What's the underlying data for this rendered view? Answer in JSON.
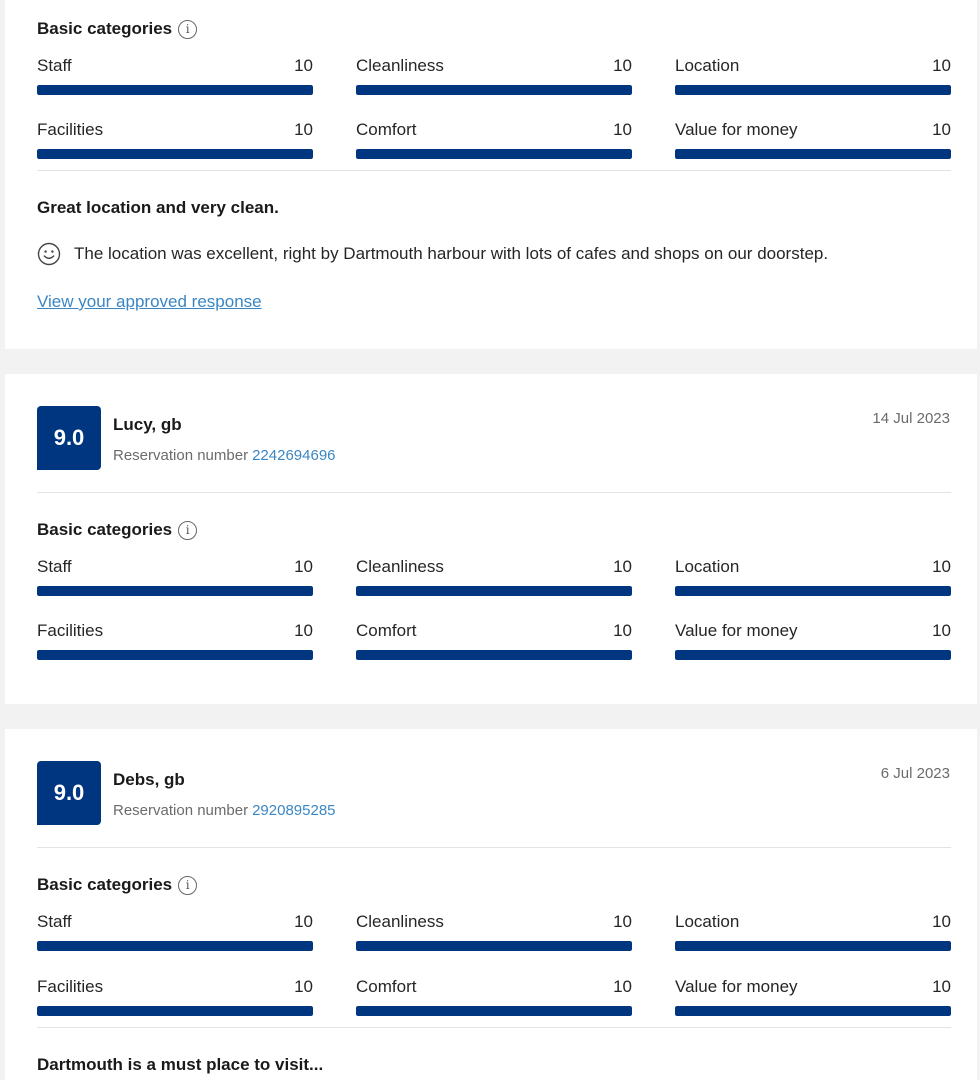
{
  "common": {
    "basic_categories_label": "Basic categories",
    "info_glyph": "i",
    "reservation_label": "Reservation number"
  },
  "colors": {
    "bar_fill": "#003580",
    "score_bg": "#003580",
    "link": "#3a86c4"
  },
  "icons": {
    "info": "info-icon",
    "smile": "smile-icon"
  },
  "reviews": [
    {
      "categories": [
        {
          "label": "Staff",
          "score": "10",
          "fraction": 1.0
        },
        {
          "label": "Cleanliness",
          "score": "10",
          "fraction": 1.0
        },
        {
          "label": "Location",
          "score": "10",
          "fraction": 1.0
        },
        {
          "label": "Facilities",
          "score": "10",
          "fraction": 1.0
        },
        {
          "label": "Comfort",
          "score": "10",
          "fraction": 1.0
        },
        {
          "label": "Value for money",
          "score": "10",
          "fraction": 1.0
        }
      ],
      "title": "Great location and very clean.",
      "positive_text": "The location was excellent, right by Dartmouth harbour with lots of cafes and shops on our doorstep.",
      "response_link": "View your approved response"
    },
    {
      "score": "9.0",
      "guest": "Lucy, gb",
      "reservation_number": "2242694696",
      "date": "14 Jul 2023",
      "categories": [
        {
          "label": "Staff",
          "score": "10",
          "fraction": 1.0
        },
        {
          "label": "Cleanliness",
          "score": "10",
          "fraction": 1.0
        },
        {
          "label": "Location",
          "score": "10",
          "fraction": 1.0
        },
        {
          "label": "Facilities",
          "score": "10",
          "fraction": 1.0
        },
        {
          "label": "Comfort",
          "score": "10",
          "fraction": 1.0
        },
        {
          "label": "Value for money",
          "score": "10",
          "fraction": 1.0
        }
      ]
    },
    {
      "score": "9.0",
      "guest": "Debs, gb",
      "reservation_number": "2920895285",
      "date": "6 Jul 2023",
      "categories": [
        {
          "label": "Staff",
          "score": "10",
          "fraction": 1.0
        },
        {
          "label": "Cleanliness",
          "score": "10",
          "fraction": 1.0
        },
        {
          "label": "Location",
          "score": "10",
          "fraction": 1.0
        },
        {
          "label": "Facilities",
          "score": "10",
          "fraction": 1.0
        },
        {
          "label": "Comfort",
          "score": "10",
          "fraction": 1.0
        },
        {
          "label": "Value for money",
          "score": "10",
          "fraction": 1.0
        }
      ],
      "title": "Dartmouth is a must place to visit..."
    }
  ]
}
